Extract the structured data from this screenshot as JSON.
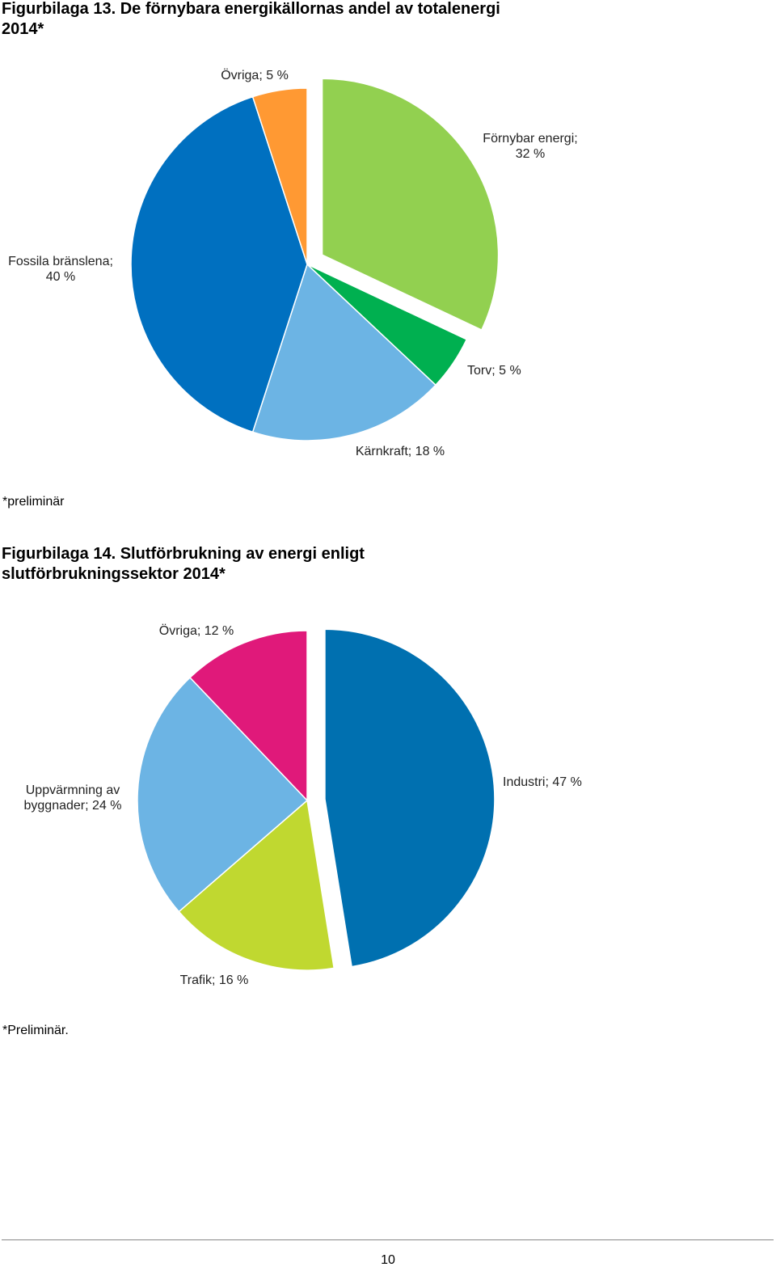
{
  "figure1": {
    "title": "Figurbilaga 13. De förnybara energikällornas andel av totalenergi\n2014*",
    "note": "*preliminär"
  },
  "figure2": {
    "title": "Figurbilaga 14. Slutförbrukning av energi enligt\nslutförbrukningssektor 2014*",
    "note": "*Preliminär."
  },
  "page_number": "10",
  "chart_data": [
    {
      "type": "pie",
      "unit": "%",
      "slices": [
        {
          "label_lines": [
            "Förnybar energi;",
            "32 %"
          ],
          "value": 32,
          "color": "#92d050",
          "exploded": true
        },
        {
          "label_lines": [
            "Torv;  5 %"
          ],
          "value": 5,
          "color": "#00b050"
        },
        {
          "label_lines": [
            "Kärnkraft;  18 %"
          ],
          "value": 18,
          "color": "#6cb4e4"
        },
        {
          "label_lines": [
            "Fossila bränslena;",
            "40 %"
          ],
          "value": 40,
          "color": "#0070c0"
        },
        {
          "label_lines": [
            "Övriga;  5 %"
          ],
          "value": 5,
          "color": "#ff9933"
        }
      ]
    },
    {
      "type": "pie",
      "unit": "%",
      "slices": [
        {
          "label_lines": [
            "Industri;  47 %"
          ],
          "value": 47,
          "color": "#0070b0",
          "exploded": true
        },
        {
          "label_lines": [
            "Trafik;  16 %"
          ],
          "value": 16,
          "color": "#c0d830"
        },
        {
          "label_lines": [
            "Uppvärmning    av",
            "byggnader;  24 %"
          ],
          "value": 24,
          "color": "#6cb4e4"
        },
        {
          "label_lines": [
            "Övriga;  12 %"
          ],
          "value": 12,
          "color": "#e0197a"
        }
      ]
    }
  ]
}
